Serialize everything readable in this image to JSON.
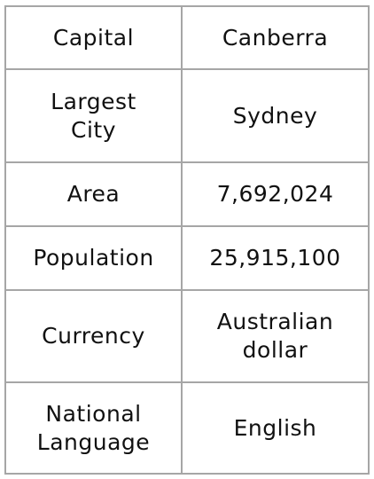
{
  "rows": [
    {
      "label": "Capital",
      "value": "Canberra"
    },
    {
      "label": "Largest\nCity",
      "value": "Sydney"
    },
    {
      "label": "Area",
      "value": "7,692,024"
    },
    {
      "label": "Population",
      "value": "25,915,100"
    },
    {
      "label": "Currency",
      "value": "Australian\ndollar"
    },
    {
      "label": "National\nLanguage",
      "value": "English"
    }
  ]
}
